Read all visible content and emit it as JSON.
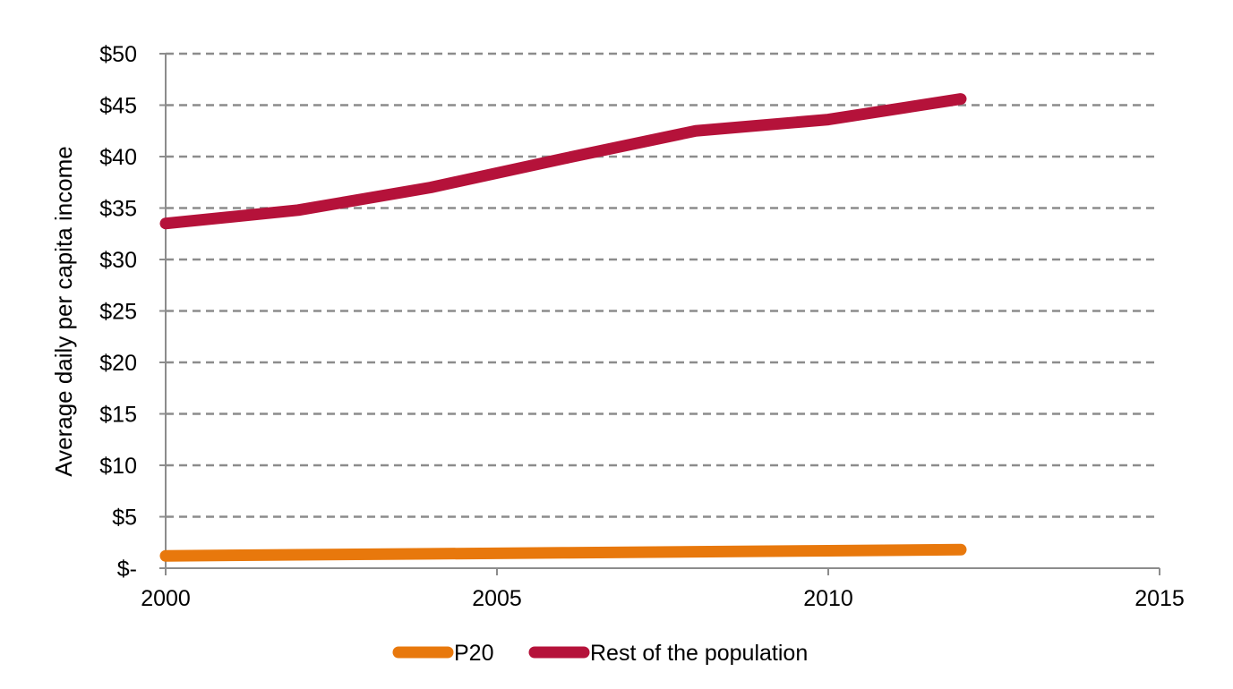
{
  "chart_data": {
    "type": "line",
    "title": "",
    "xlabel": "",
    "ylabel": "Average daily per capita income",
    "xlim": [
      2000,
      2015
    ],
    "ylim": [
      0,
      50
    ],
    "x_ticks": [
      2000,
      2005,
      2010,
      2015
    ],
    "x_tick_labels": [
      "2000",
      "2005",
      "2010",
      "2015"
    ],
    "y_ticks": [
      0,
      5,
      10,
      15,
      20,
      25,
      30,
      35,
      40,
      45,
      50
    ],
    "y_tick_labels": [
      "$-",
      "$5",
      "$10",
      "$15",
      "$20",
      "$25",
      "$30",
      "$35",
      "$40",
      "$45",
      "$50"
    ],
    "grid": "horizontal dashed",
    "legend_position": "bottom",
    "series": [
      {
        "name": "P20",
        "color": "#E8780C",
        "x": [
          2000,
          2002,
          2004,
          2006,
          2008,
          2010,
          2012
        ],
        "y": [
          1.2,
          1.3,
          1.4,
          1.5,
          1.6,
          1.7,
          1.8
        ]
      },
      {
        "name": "Rest of the population",
        "color": "#B5123A",
        "x": [
          2000,
          2002,
          2004,
          2006,
          2008,
          2010,
          2012
        ],
        "y": [
          33.5,
          34.8,
          37.0,
          39.8,
          42.5,
          43.6,
          45.6
        ]
      }
    ]
  }
}
